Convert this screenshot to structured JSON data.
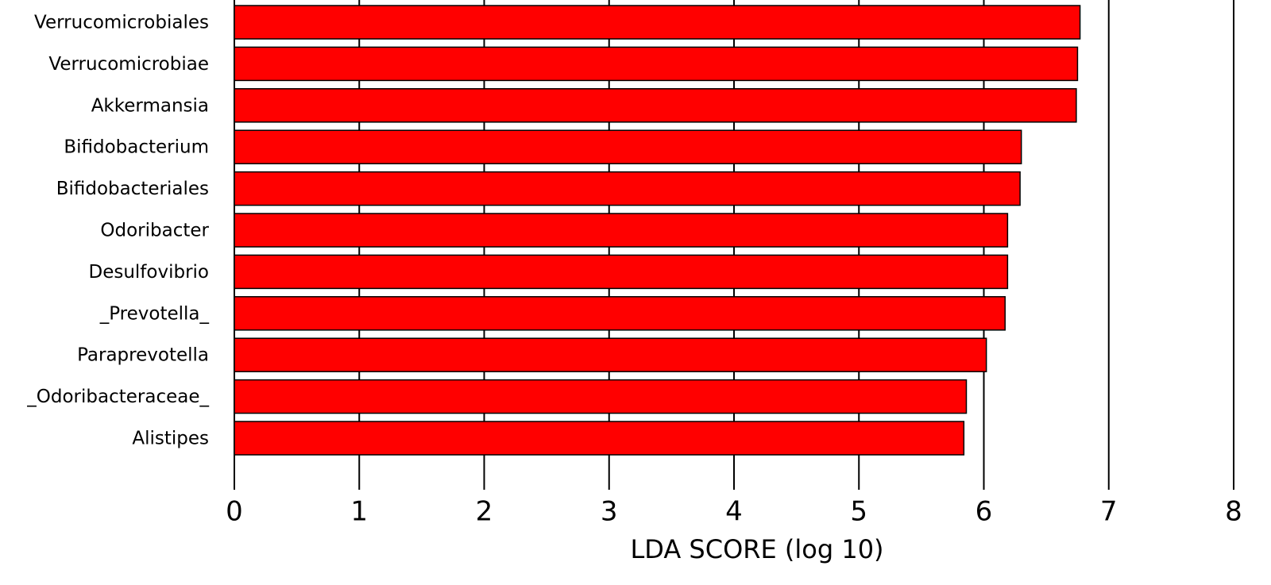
{
  "chart_data": {
    "type": "bar",
    "orientation": "horizontal",
    "categories": [
      "Verrucomicrobiales",
      "Verrucomicrobiae",
      "Akkermansia",
      "Bifidobacterium",
      "Bifidobacteriales",
      "Odoribacter",
      "Desulfovibrio",
      "_Prevotella_",
      "Paraprevotella",
      "_Odoribacteraceae_",
      "Alistipes"
    ],
    "values": [
      6.77,
      6.75,
      6.74,
      6.3,
      6.29,
      6.19,
      6.19,
      6.17,
      6.02,
      5.86,
      5.84
    ],
    "color": "#ff0000",
    "xlabel": "LDA SCORE (log 10)",
    "xlim": [
      0,
      8
    ],
    "xticks": [
      0,
      1,
      2,
      3,
      4,
      5,
      6,
      7,
      8
    ],
    "grid": true
  }
}
